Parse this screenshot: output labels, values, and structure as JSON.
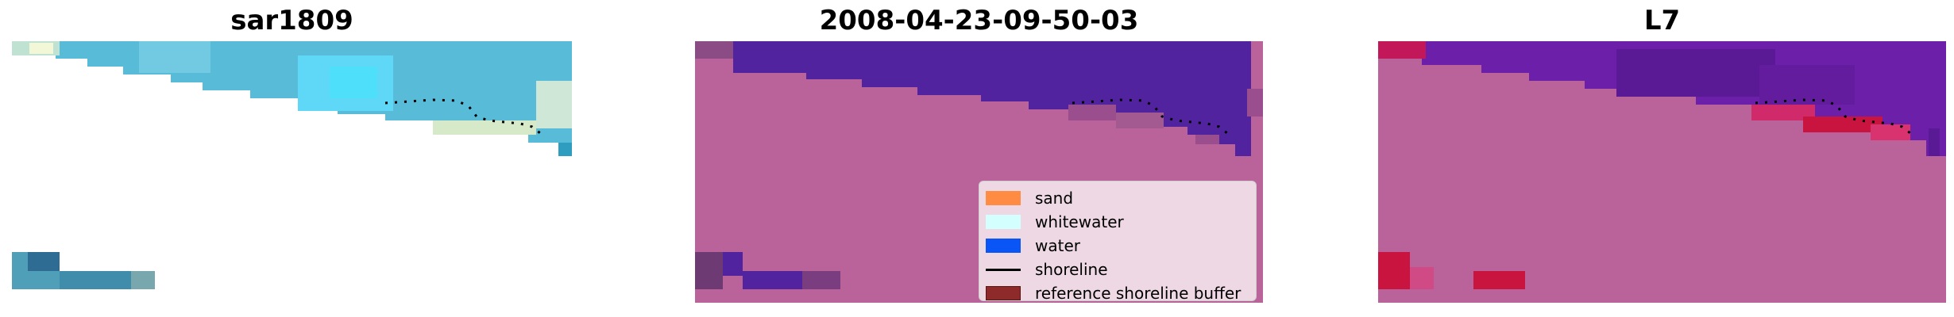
{
  "panels": [
    {
      "title": "sar1809"
    },
    {
      "title": "2008-04-23-09-50-03"
    },
    {
      "title": "L7"
    }
  ],
  "legend": [
    {
      "label": "sand",
      "kind": "patch",
      "color": "#ff8c42"
    },
    {
      "label": "whitewater",
      "kind": "patch",
      "color": "#d4ffff"
    },
    {
      "label": "water",
      "kind": "patch",
      "color": "#0a55f5"
    },
    {
      "label": "shoreline",
      "kind": "line",
      "color": "#000000"
    },
    {
      "label": "reference shoreline buffer",
      "kind": "patch",
      "color": "#8f2a2a"
    }
  ],
  "colors": {
    "background_class": "#b9639a",
    "water_class": "#52239e",
    "rgb_water": "#4fc4e3",
    "probability_high": "#c6183c",
    "probability_water": "#6c1fa8"
  }
}
